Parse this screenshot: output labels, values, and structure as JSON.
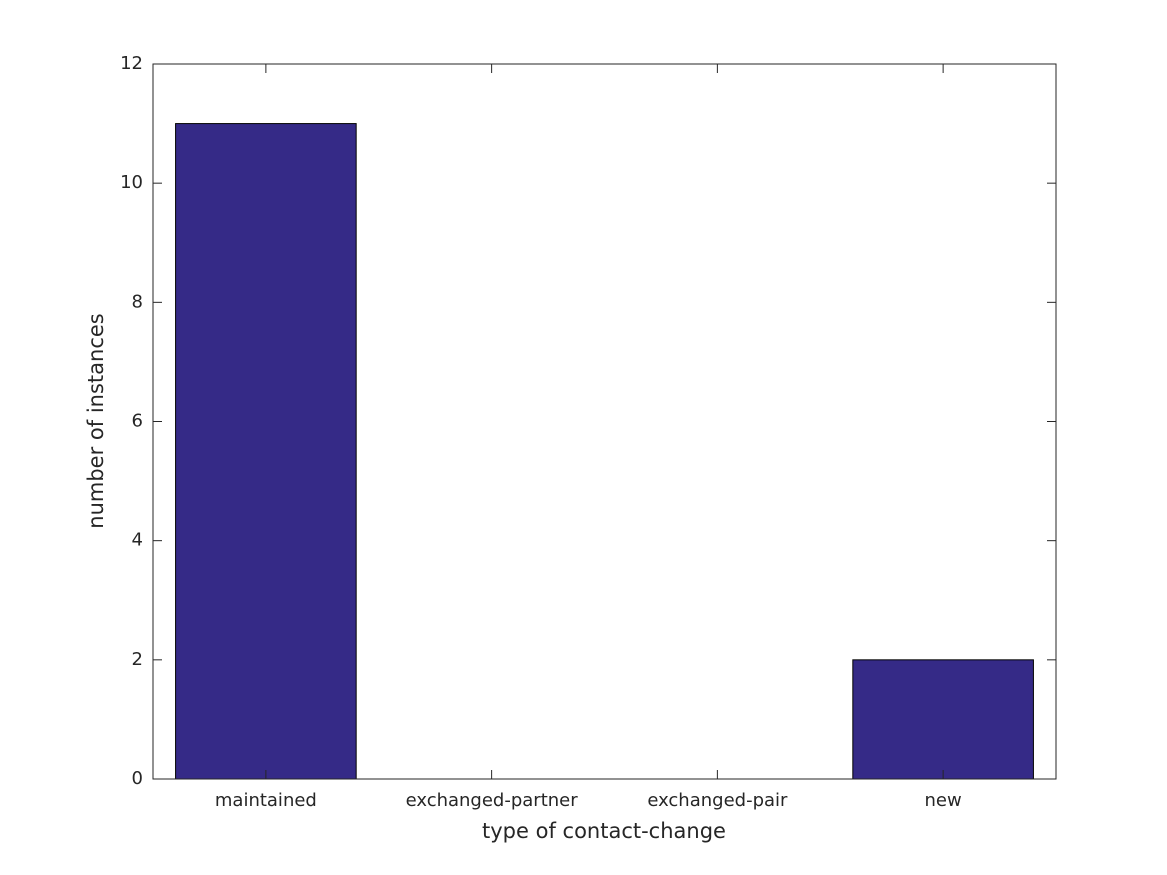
{
  "chart_data": {
    "type": "bar",
    "x_label": "type of contact-change",
    "y_label": "number of instances",
    "categories": [
      "maintained",
      "exchanged-partner",
      "exchanged-pair",
      "new"
    ],
    "values": [
      11,
      0,
      0,
      2
    ],
    "color": "#352a87",
    "ylim": [
      0,
      12
    ],
    "yticks": [
      0,
      2,
      4,
      6,
      8,
      10,
      12
    ],
    "grid": false
  }
}
